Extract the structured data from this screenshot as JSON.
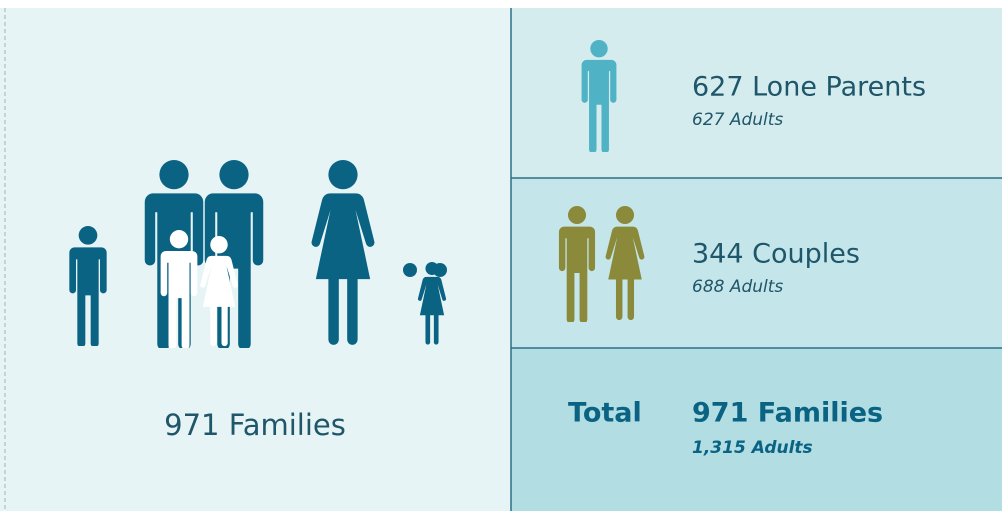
{
  "left": {
    "label": "971 Families"
  },
  "rows": [
    {
      "title": "627 Lone Parents",
      "subtitle": "627 Adults"
    },
    {
      "title": "344 Couples",
      "subtitle": "688 Adults"
    },
    {
      "label": "Total",
      "title": "971 Families",
      "subtitle": "1,315 Adults"
    }
  ]
}
